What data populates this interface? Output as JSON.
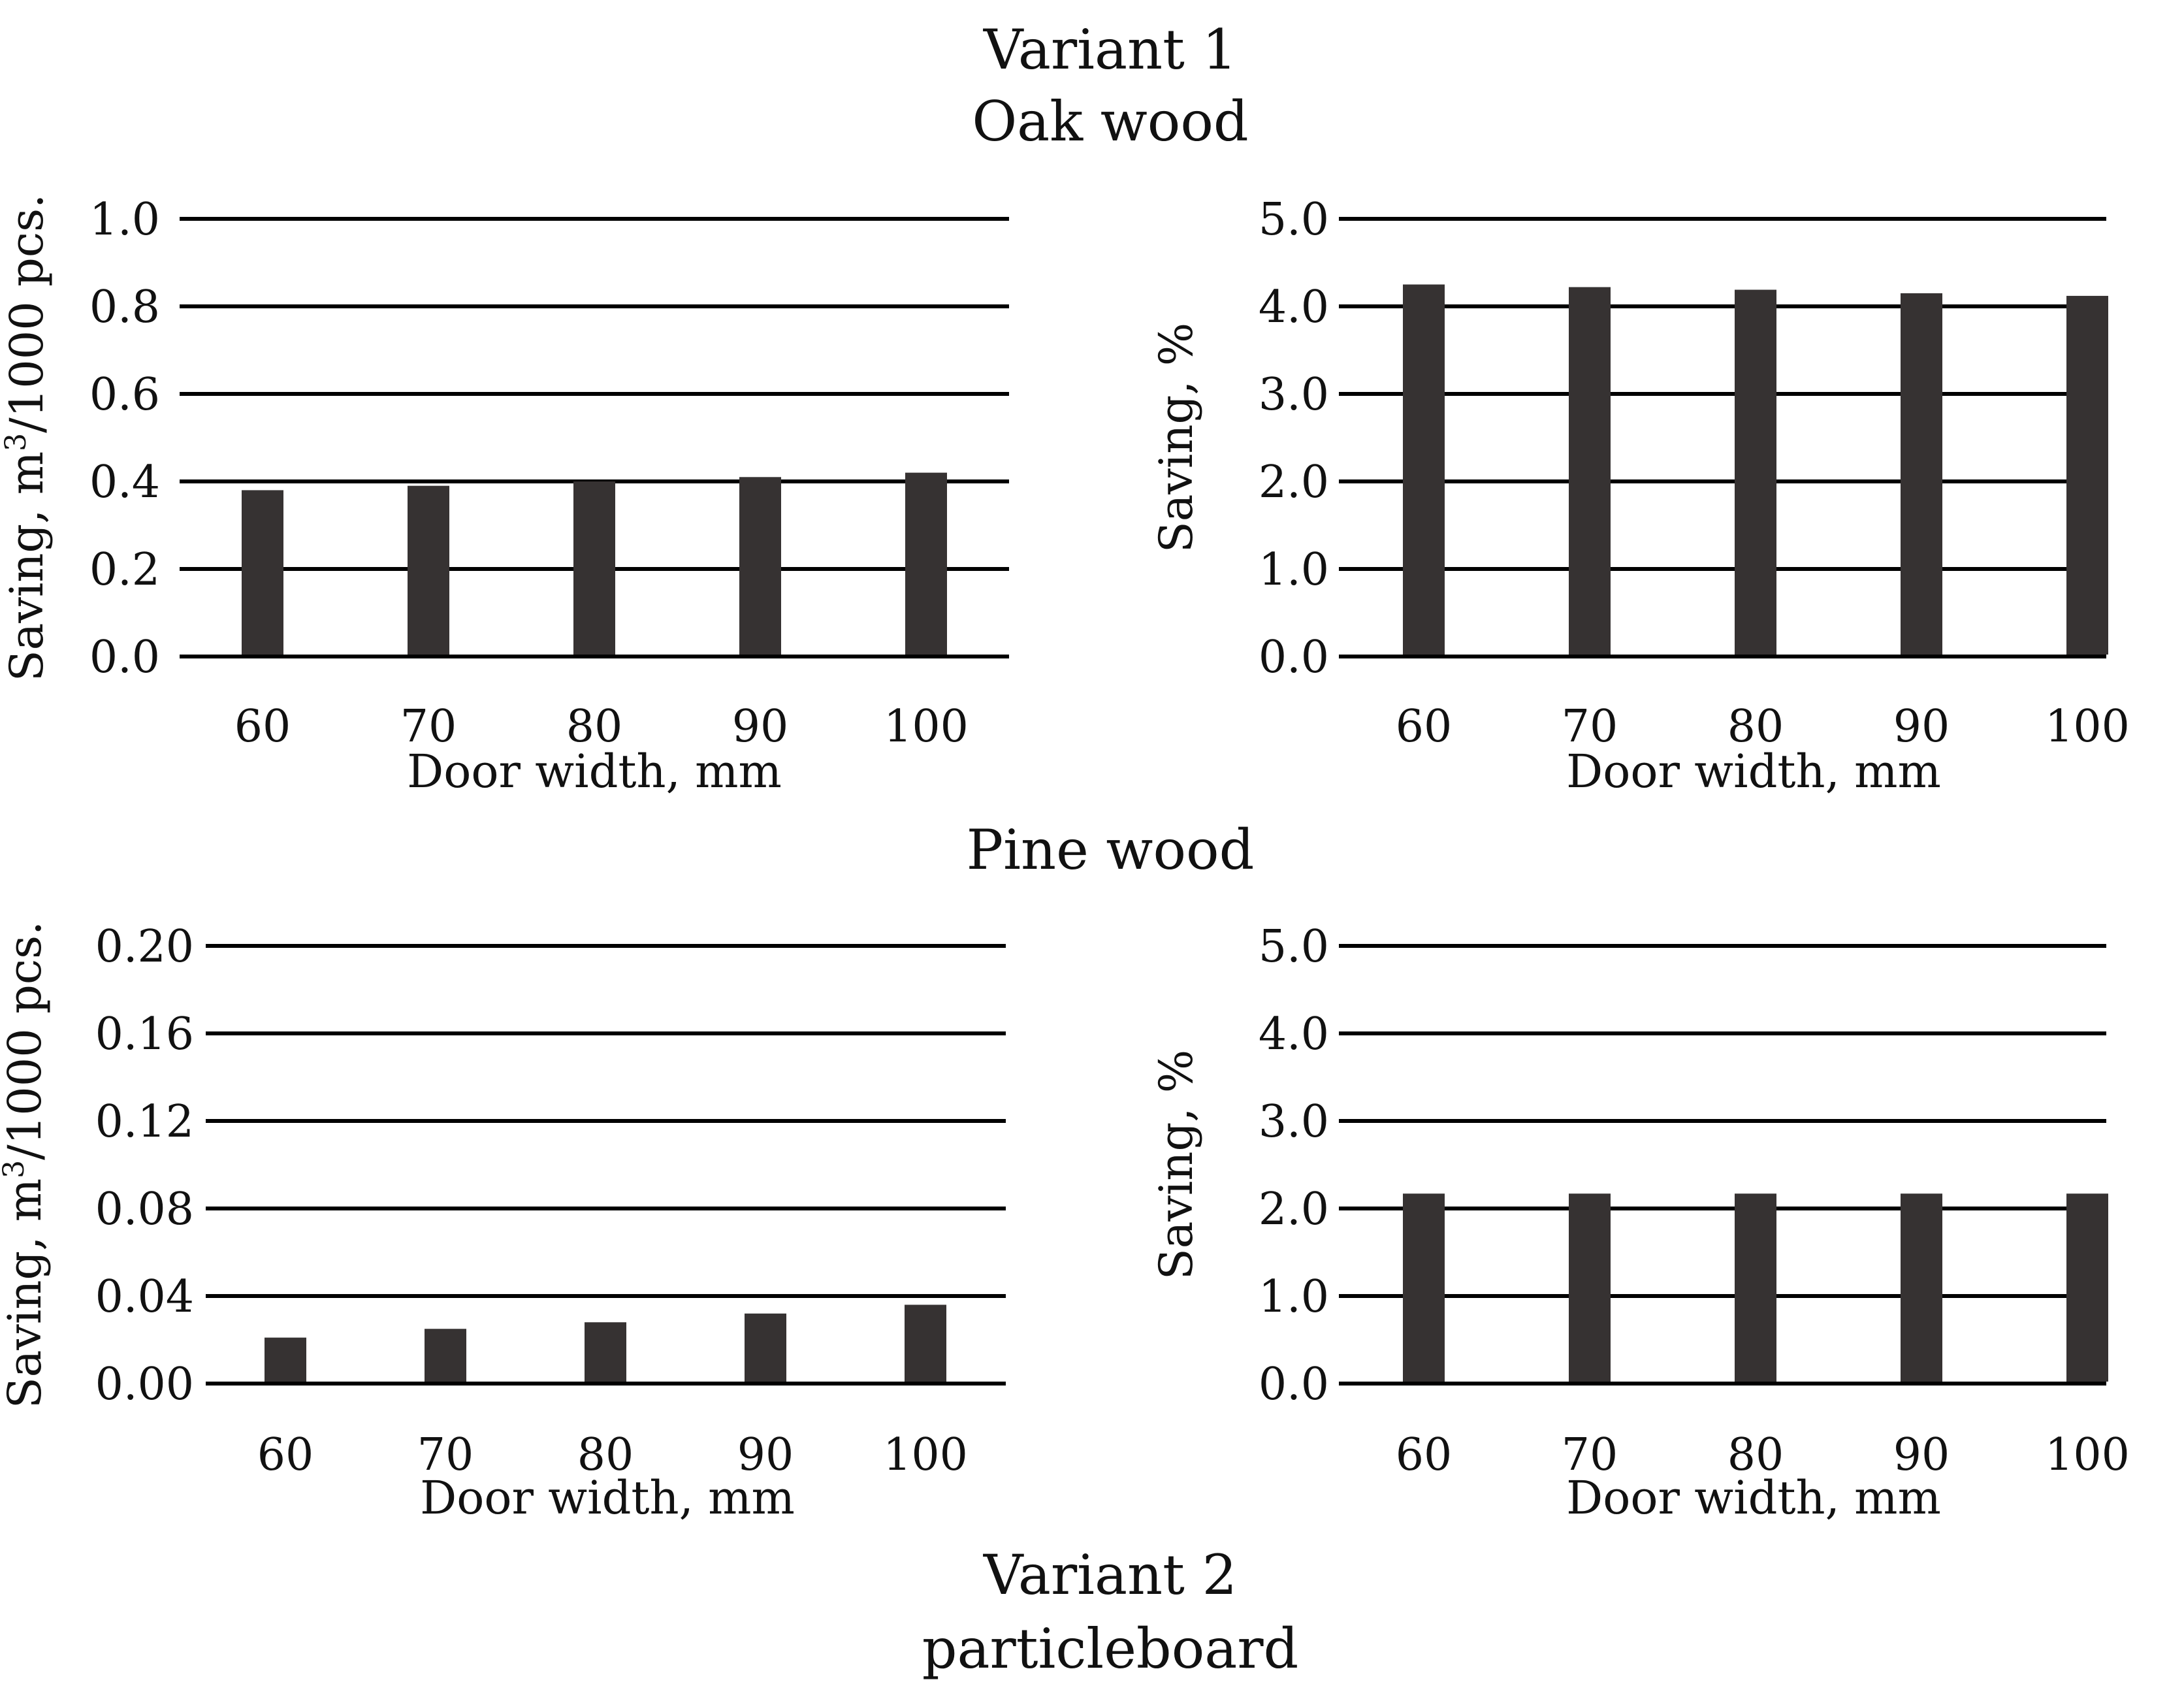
{
  "headings": {
    "variant1": "Variant 1",
    "oak": "Oak wood",
    "pine": "Pine wood",
    "variant2": "Variant 2",
    "particleboard": "particleboard"
  },
  "colors": {
    "bar": "#363232",
    "grid": "#000000",
    "text": "#111111"
  },
  "chart_data": [
    {
      "id": "oak-volume",
      "type": "bar",
      "title": "Oak wood",
      "categories": [
        "60",
        "70",
        "80",
        "90",
        "100"
      ],
      "values": [
        0.38,
        0.39,
        0.4,
        0.41,
        0.42
      ],
      "xlabel": "Door width, mm",
      "ylabel": "Saving, m3/1000 pcs.",
      "ylabel_parts": {
        "pre": "Saving, m",
        "sup": "3",
        "post": "/1000 pcs."
      },
      "ylim": [
        0,
        1.0
      ],
      "yticks": [
        "0.0",
        "0.2",
        "0.4",
        "0.6",
        "0.8",
        "1.0"
      ],
      "grid": true
    },
    {
      "id": "oak-percent",
      "type": "bar",
      "title": "Oak wood",
      "categories": [
        "60",
        "70",
        "80",
        "90",
        "100"
      ],
      "values": [
        4.25,
        4.22,
        4.19,
        4.15,
        4.12
      ],
      "xlabel": "Door width, mm",
      "ylabel": "Saving, %",
      "ylabel_parts": {
        "pre": "Saving, %",
        "sup": "",
        "post": ""
      },
      "ylim": [
        0,
        5.0
      ],
      "yticks": [
        "0.0",
        "1.0",
        "2.0",
        "3.0",
        "4.0",
        "5.0"
      ],
      "grid": true
    },
    {
      "id": "pine-volume",
      "type": "bar",
      "title": "Pine wood",
      "categories": [
        "60",
        "70",
        "80",
        "90",
        "100"
      ],
      "values": [
        0.021,
        0.025,
        0.028,
        0.032,
        0.036
      ],
      "xlabel": "Door width, mm",
      "ylabel": "Saving, m3/1000 pcs.",
      "ylabel_parts": {
        "pre": "Saving, m",
        "sup": "3",
        "post": "/1000 pcs."
      },
      "ylim": [
        0,
        0.2
      ],
      "yticks": [
        "0.00",
        "0.04",
        "0.08",
        "0.12",
        "0.16",
        "0.20"
      ],
      "grid": true
    },
    {
      "id": "pine-percent",
      "type": "bar",
      "title": "Pine wood",
      "categories": [
        "60",
        "70",
        "80",
        "90",
        "100"
      ],
      "values": [
        2.17,
        2.17,
        2.17,
        2.17,
        2.17
      ],
      "xlabel": "Door width, mm",
      "ylabel": "Saving, %",
      "ylabel_parts": {
        "pre": "Saving, %",
        "sup": "",
        "post": ""
      },
      "ylim": [
        0,
        5.0
      ],
      "yticks": [
        "0.0",
        "1.0",
        "2.0",
        "3.0",
        "4.0",
        "5.0"
      ],
      "grid": true
    }
  ]
}
